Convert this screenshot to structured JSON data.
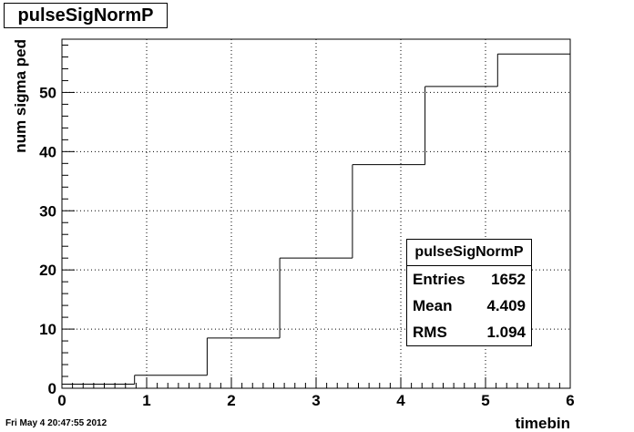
{
  "title": "pulseSigNormP",
  "footer_date": "Fri May  4 20:47:55 2012",
  "stats": {
    "title": "pulseSigNormP",
    "rows": [
      {
        "label": "Entries",
        "value": "1652"
      },
      {
        "label": "Mean",
        "value": "4.409"
      },
      {
        "label": "RMS",
        "value": "1.094"
      }
    ]
  },
  "chart_data": {
    "type": "histogram",
    "title": "pulseSigNormP",
    "xlabel": "timebin",
    "ylabel": "num sigma ped",
    "xlim": [
      0,
      6
    ],
    "ylim": [
      0,
      59
    ],
    "x_ticks": [
      0,
      1,
      2,
      3,
      4,
      5,
      6
    ],
    "y_ticks": [
      0,
      10,
      20,
      30,
      40,
      50
    ],
    "grid": true,
    "bin_edges": [
      0,
      0.857,
      1.714,
      2.571,
      3.429,
      4.286,
      5.143,
      6
    ],
    "values": [
      0.7,
      2.2,
      8.5,
      22.0,
      37.8,
      51.0,
      56.5
    ]
  }
}
